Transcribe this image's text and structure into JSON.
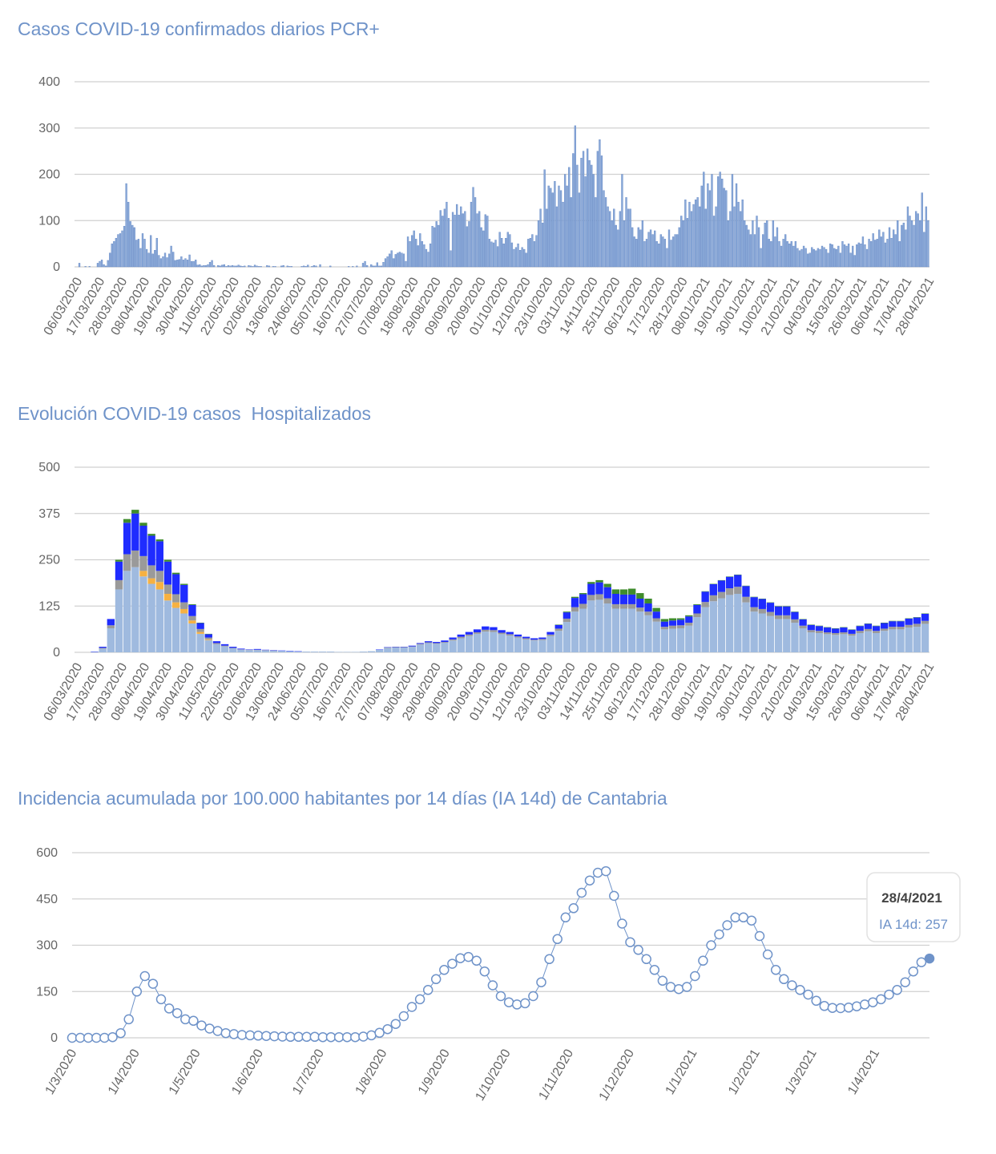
{
  "chart_data": [
    {
      "type": "bar",
      "title": "Casos COVID-19 confirmados diarios PCR+",
      "xlabel": "",
      "ylabel": "",
      "ylim": [
        0,
        400
      ],
      "yticks": [
        "0",
        "100",
        "200",
        "300",
        "400"
      ],
      "grid": true,
      "start_date": "06/03/2020",
      "end_date": "28/04/2021",
      "color": "#8aa9d8",
      "xticks": [
        "06/03/2020",
        "17/03/2020",
        "28/03/2020",
        "08/04/2020",
        "19/04/2020",
        "30/04/2020",
        "11/05/2020",
        "22/05/2020",
        "02/06/2020",
        "13/06/2020",
        "24/06/2020",
        "05/07/2020",
        "16/07/2020",
        "27/07/2020",
        "07/08/2020",
        "18/08/2020",
        "29/08/2020",
        "09/09/2020",
        "20/09/2020",
        "01/10/2020",
        "12/10/2020",
        "23/10/2020",
        "03/11/2020",
        "14/11/2020",
        "25/11/2020",
        "06/12/2020",
        "17/12/2020",
        "28/12/2020",
        "08/01/2021",
        "19/01/2021",
        "30/01/2021",
        "10/02/2021",
        "21/02/2021",
        "04/03/2021",
        "15/03/2021",
        "26/03/2021",
        "06/04/2021",
        "17/04/2021",
        "28/04/2021"
      ],
      "values": [
        0,
        0,
        8,
        0,
        0,
        1,
        0,
        1,
        0,
        0,
        0,
        8,
        12,
        15,
        5,
        2,
        14,
        30,
        50,
        55,
        62,
        70,
        72,
        78,
        88,
        180,
        140,
        98,
        90,
        85,
        58,
        60,
        40,
        72,
        60,
        38,
        30,
        68,
        28,
        36,
        62,
        25,
        18,
        22,
        30,
        20,
        28,
        45,
        32,
        14,
        15,
        16,
        22,
        15,
        18,
        15,
        26,
        12,
        12,
        15,
        4,
        5,
        2,
        3,
        3,
        5,
        10,
        14,
        3,
        0,
        3,
        2,
        4,
        5,
        1,
        3,
        2,
        3,
        2,
        2,
        4,
        2,
        1,
        2,
        0,
        3,
        2,
        1,
        4,
        2,
        1,
        1,
        0,
        0,
        3,
        2,
        0,
        1,
        1,
        0,
        0,
        2,
        3,
        0,
        2,
        1,
        1,
        0,
        0,
        0,
        0,
        1,
        2,
        1,
        4,
        0,
        1,
        3,
        2,
        0,
        5,
        0,
        0,
        0,
        0,
        2,
        0,
        0,
        0,
        0,
        0,
        0,
        0,
        0,
        1,
        0,
        1,
        0,
        2,
        0,
        0,
        8,
        12,
        3,
        0,
        5,
        2,
        2,
        9,
        2,
        2,
        10,
        18,
        22,
        28,
        35,
        18,
        27,
        30,
        32,
        30,
        28,
        12,
        65,
        55,
        68,
        78,
        60,
        46,
        72,
        55,
        48,
        38,
        32,
        50,
        88,
        85,
        98,
        90,
        122,
        110,
        125,
        140,
        105,
        35,
        118,
        112,
        135,
        112,
        130,
        115,
        120,
        87,
        98,
        140,
        172,
        150,
        115,
        120,
        85,
        78,
        113,
        110,
        60,
        54,
        52,
        58,
        44,
        75,
        62,
        50,
        62,
        75,
        70,
        52,
        38,
        42,
        50,
        36,
        42,
        38,
        30,
        60,
        62,
        70,
        55,
        68,
        100,
        125,
        95,
        210,
        125,
        175,
        170,
        160,
        185,
        130,
        175,
        165,
        140,
        200,
        175,
        215,
        150,
        245,
        305,
        220,
        160,
        235,
        250,
        195,
        255,
        230,
        220,
        200,
        150,
        250,
        275,
        240,
        165,
        150,
        130,
        120,
        100,
        125,
        90,
        80,
        120,
        200,
        100,
        150,
        125,
        125,
        85,
        65,
        60,
        85,
        80,
        100,
        55,
        60,
        75,
        80,
        70,
        78,
        55,
        50,
        70,
        65,
        60,
        40,
        80,
        58,
        65,
        70,
        70,
        85,
        110,
        100,
        145,
        105,
        140,
        120,
        135,
        145,
        150,
        130,
        175,
        205,
        125,
        180,
        165,
        200,
        110,
        130,
        195,
        205,
        190,
        170,
        165,
        100,
        120,
        200,
        130,
        180,
        140,
        120,
        145,
        100,
        90,
        80,
        70,
        100,
        70,
        110,
        85,
        40,
        70,
        95,
        100,
        60,
        55,
        100,
        65,
        85,
        55,
        45,
        60,
        70,
        55,
        50,
        55,
        45,
        55,
        40,
        35,
        38,
        45,
        40,
        28,
        30,
        42,
        38,
        35,
        40,
        38,
        45,
        42,
        38,
        30,
        50,
        48,
        40,
        38,
        45,
        30,
        55,
        48,
        45,
        50,
        30,
        45,
        25,
        48,
        52,
        50,
        65,
        48,
        38,
        60,
        55,
        72,
        58,
        60,
        80,
        65,
        75,
        52,
        60,
        85,
        62,
        80,
        70,
        100,
        55,
        90,
        95,
        80,
        130,
        110,
        100,
        90,
        120,
        115,
        100,
        160,
        75,
        130,
        100
      ]
    },
    {
      "type": "bar",
      "stacked": true,
      "title": "Evolución COVID-19 casos  Hospitalizados",
      "xlabel": "",
      "ylabel": "",
      "ylim": [
        0,
        500
      ],
      "yticks": [
        "0",
        "125",
        "250",
        "375",
        "500"
      ],
      "grid": true,
      "start_date": "06/03/2020",
      "end_date": "28/04/2021",
      "xticks": [
        "06/03/2020",
        "17/03/2020",
        "28/03/2020",
        "08/04/2020",
        "19/04/2020",
        "30/04/2020",
        "11/05/2020",
        "22/05/2020",
        "02/06/2020",
        "13/06/2020",
        "24/06/2020",
        "05/07/2020",
        "16/07/2020",
        "27/07/2020",
        "07/08/2020",
        "18/08/2020",
        "29/08/2020",
        "09/09/2020",
        "20/09/2020",
        "01/10/2020",
        "12/10/2020",
        "23/10/2020",
        "03/11/2020",
        "14/11/2020",
        "25/11/2020",
        "06/12/2020",
        "17/12/2020",
        "28/12/2020",
        "08/01/2021",
        "19/01/2021",
        "30/01/2021",
        "10/02/2021",
        "21/02/2021",
        "04/03/2021",
        "15/03/2021",
        "26/03/2021",
        "06/04/2021",
        "17/04/2021",
        "28/04/2021"
      ],
      "series": [
        {
          "color": "#9fbadf",
          "values": [
            0,
            0,
            1,
            10,
            65,
            170,
            220,
            230,
            205,
            185,
            170,
            140,
            120,
            105,
            78,
            50,
            33,
            22,
            16,
            11,
            7,
            6,
            6,
            5,
            4,
            4,
            3,
            2,
            2,
            2,
            2,
            2,
            1,
            1,
            1,
            2,
            3,
            7,
            12,
            13,
            13,
            15,
            21,
            25,
            23,
            26,
            32,
            38,
            44,
            50,
            56,
            55,
            49,
            45,
            40,
            35,
            32,
            33,
            44,
            58,
            82,
            110,
            118,
            140,
            142,
            132,
            118,
            118,
            118,
            110,
            100,
            83,
            62,
            64,
            65,
            72,
            95,
            122,
            138,
            146,
            155,
            158,
            135,
            110,
            105,
            98,
            90,
            90,
            80,
            65,
            54,
            52,
            49,
            47,
            49,
            45,
            52,
            57,
            52,
            58,
            62,
            62,
            67,
            69,
            77
          ]
        },
        {
          "color": "#f6b142",
          "values": [
            0,
            0,
            0,
            0,
            0,
            0,
            0,
            0,
            15,
            15,
            20,
            18,
            15,
            12,
            8,
            5,
            2,
            0,
            0,
            0,
            0,
            0,
            0,
            0,
            0,
            0,
            0,
            0,
            0,
            0,
            0,
            0,
            0,
            0,
            0,
            0,
            0,
            0,
            0,
            0,
            0,
            0,
            0,
            0,
            0,
            0,
            0,
            0,
            0,
            0,
            0,
            0,
            0,
            0,
            0,
            0,
            0,
            0,
            0,
            0,
            0,
            0,
            0,
            0,
            0,
            0,
            0,
            0,
            0,
            0,
            0,
            0,
            0,
            0,
            0,
            0,
            0,
            0,
            0,
            0,
            0,
            0,
            0,
            0,
            0,
            0,
            0,
            0,
            0,
            0,
            0,
            0,
            0,
            0,
            0,
            0,
            0,
            0,
            0,
            0,
            0,
            0,
            0,
            0,
            0
          ]
        },
        {
          "color": "#9a9a9a",
          "values": [
            0,
            0,
            0,
            2,
            8,
            25,
            45,
            45,
            40,
            35,
            30,
            25,
            22,
            18,
            12,
            8,
            5,
            3,
            2,
            1,
            1,
            1,
            1,
            1,
            1,
            0,
            0,
            0,
            0,
            0,
            0,
            0,
            0,
            0,
            0,
            0,
            0,
            0,
            1,
            1,
            1,
            1,
            2,
            2,
            2,
            2,
            3,
            4,
            4,
            4,
            5,
            5,
            4,
            4,
            3,
            3,
            2,
            3,
            4,
            6,
            9,
            12,
            13,
            15,
            15,
            14,
            12,
            12,
            12,
            11,
            10,
            9,
            7,
            8,
            8,
            8,
            10,
            14,
            16,
            17,
            18,
            19,
            15,
            12,
            12,
            11,
            10,
            10,
            9,
            7,
            6,
            6,
            5,
            5,
            5,
            5,
            6,
            6,
            6,
            6,
            7,
            7,
            7,
            8,
            8
          ]
        },
        {
          "color": "#1f2cff",
          "values": [
            0,
            0,
            1,
            3,
            17,
            50,
            85,
            100,
            82,
            80,
            80,
            62,
            54,
            47,
            30,
            16,
            9,
            5,
            4,
            3,
            2,
            1,
            2,
            1,
            1,
            1,
            1,
            1,
            0,
            0,
            0,
            0,
            0,
            0,
            0,
            0,
            0,
            1,
            1,
            1,
            1,
            2,
            2,
            3,
            3,
            4,
            5,
            6,
            7,
            8,
            9,
            8,
            7,
            6,
            5,
            4,
            4,
            4,
            7,
            10,
            17,
            25,
            26,
            30,
            32,
            30,
            28,
            26,
            26,
            24,
            22,
            18,
            14,
            14,
            15,
            17,
            23,
            28,
            30,
            31,
            31,
            32,
            29,
            27,
            27,
            25,
            24,
            24,
            20,
            17,
            14,
            13,
            13,
            12,
            13,
            11,
            13,
            14,
            13,
            15,
            15,
            15,
            17,
            17,
            19
          ]
        },
        {
          "color": "#3f8c2c",
          "values": [
            0,
            0,
            0,
            0,
            0,
            5,
            10,
            10,
            8,
            5,
            5,
            5,
            4,
            3,
            2,
            1,
            1,
            0,
            0,
            0,
            0,
            0,
            0,
            0,
            0,
            0,
            0,
            0,
            0,
            0,
            0,
            0,
            0,
            0,
            0,
            0,
            0,
            0,
            0,
            0,
            0,
            0,
            0,
            0,
            0,
            0,
            0,
            0,
            0,
            0,
            0,
            0,
            0,
            0,
            0,
            0,
            0,
            0,
            0,
            1,
            2,
            3,
            3,
            5,
            6,
            9,
            12,
            14,
            16,
            15,
            13,
            10,
            7,
            6,
            4,
            3,
            2,
            1,
            1,
            1,
            1,
            1,
            1,
            1,
            1,
            1,
            1,
            1,
            1,
            1,
            1,
            1,
            1,
            1,
            1,
            1,
            1,
            1,
            1,
            1,
            1,
            1,
            1,
            1,
            1
          ]
        }
      ]
    },
    {
      "type": "line",
      "title": "Incidencia acumulada por 100.000 habitantes por 14 días (IA 14d) de Cantabria",
      "xlabel": "",
      "ylabel": "",
      "ylim": [
        0,
        600
      ],
      "yticks": [
        "0",
        "150",
        "300",
        "450",
        "600"
      ],
      "grid": true,
      "start_date": "1/3/2020",
      "end_date": "28/4/2021",
      "color": "#6f93c9",
      "xticks": [
        "1/3/2020",
        "1/4/2020",
        "1/5/2020",
        "1/6/2020",
        "1/7/2020",
        "1/8/2020",
        "1/9/2020",
        "1/10/2020",
        "1/11/2020",
        "1/12/2020",
        "1/1/2021",
        "1/2/2021",
        "1/3/2021",
        "1/4/2021"
      ],
      "series": [
        {
          "name": "IA 14d",
          "values": [
            0,
            0,
            0,
            0,
            0,
            2,
            15,
            60,
            150,
            200,
            175,
            125,
            95,
            80,
            60,
            55,
            40,
            30,
            22,
            15,
            12,
            9,
            8,
            7,
            6,
            5,
            4,
            3,
            3,
            3,
            3,
            2,
            2,
            2,
            2,
            2,
            4,
            8,
            16,
            28,
            45,
            70,
            100,
            125,
            155,
            190,
            220,
            240,
            258,
            262,
            250,
            215,
            170,
            135,
            115,
            108,
            112,
            135,
            180,
            255,
            320,
            390,
            420,
            470,
            510,
            535,
            540,
            460,
            370,
            310,
            285,
            255,
            220,
            185,
            165,
            158,
            165,
            200,
            250,
            300,
            335,
            365,
            390,
            390,
            380,
            330,
            270,
            220,
            190,
            170,
            155,
            140,
            120,
            103,
            97,
            96,
            98,
            102,
            108,
            115,
            125,
            140,
            155,
            180,
            215,
            245,
            257
          ]
        }
      ],
      "tooltip": {
        "date": "28/4/2021",
        "label": "IA 14d: 257"
      }
    }
  ]
}
